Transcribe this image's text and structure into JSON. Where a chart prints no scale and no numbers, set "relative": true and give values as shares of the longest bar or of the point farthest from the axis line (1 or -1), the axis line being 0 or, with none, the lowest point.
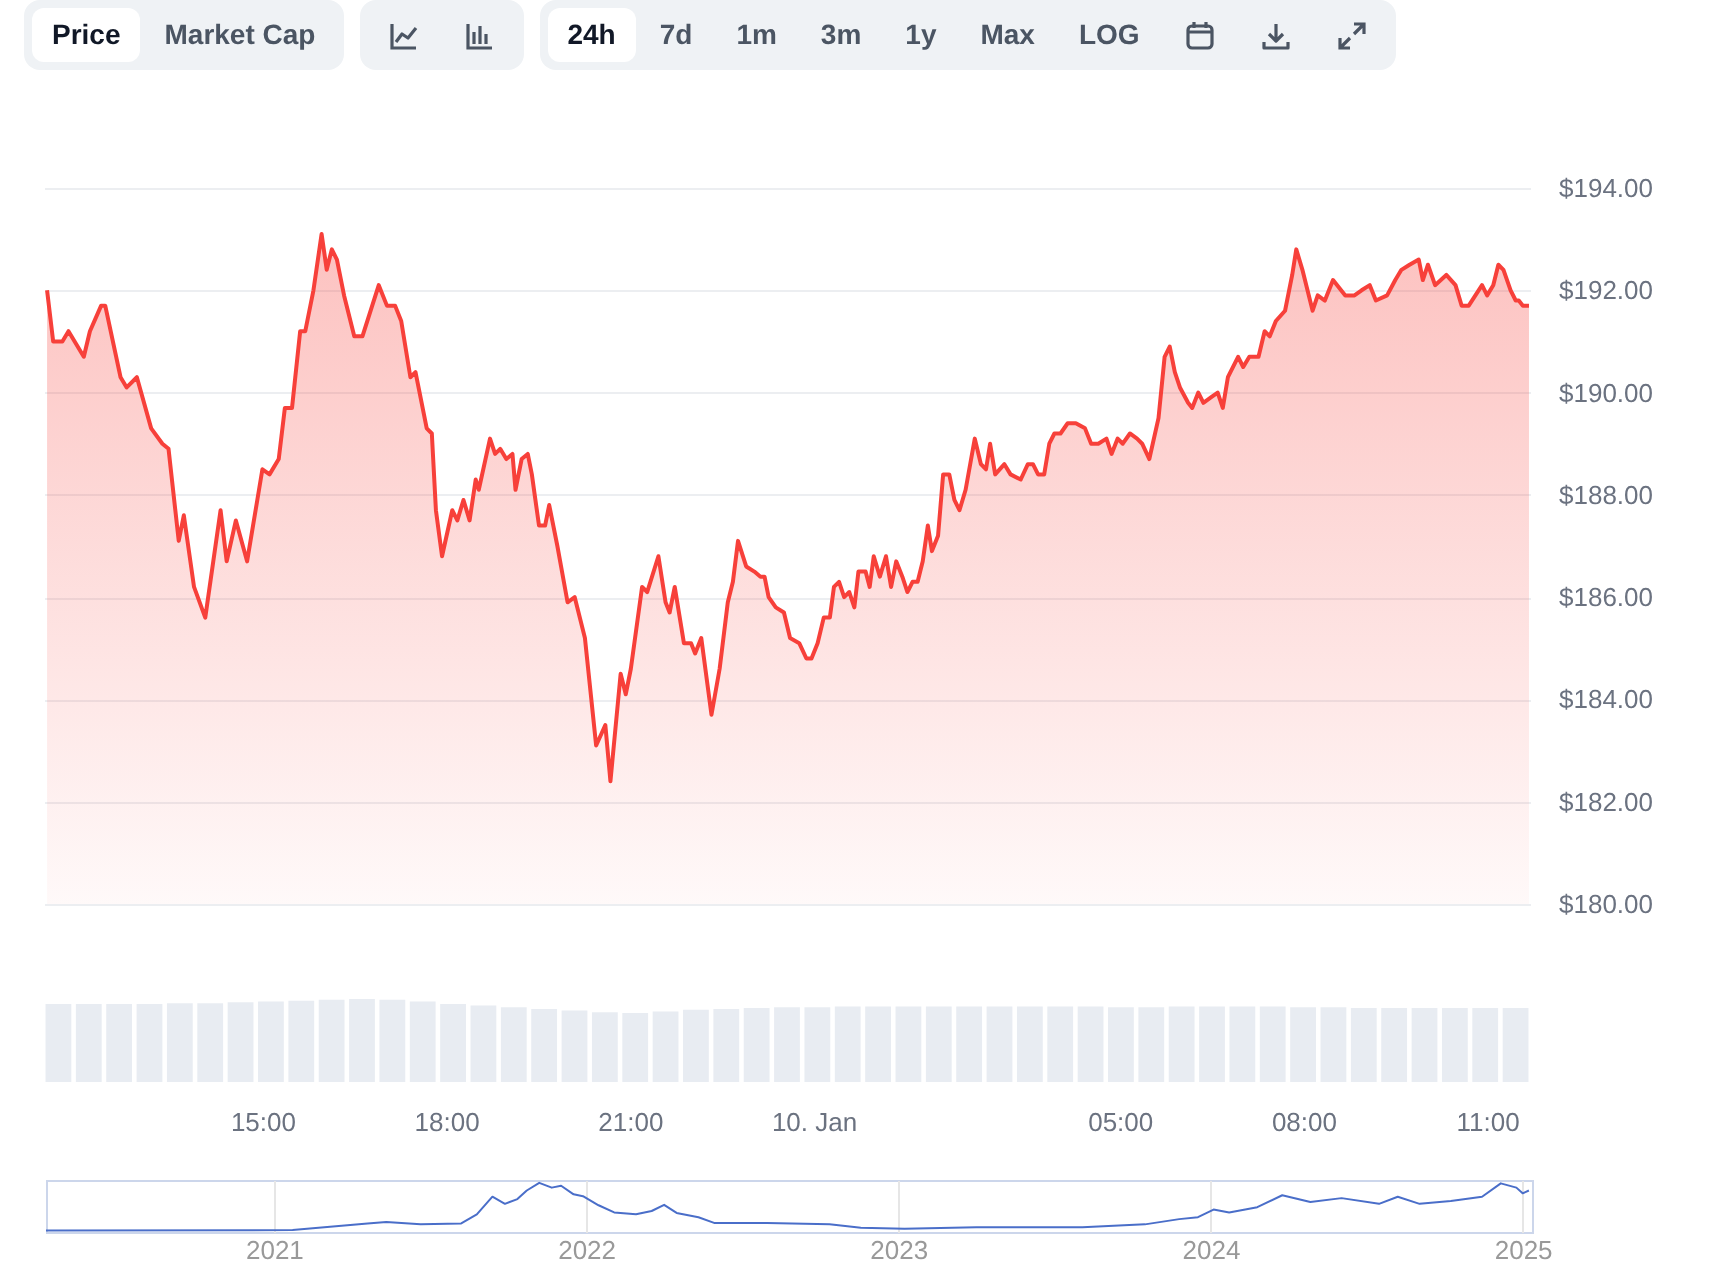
{
  "chart_data": [
    {
      "type": "other",
      "annotations": [
        "Price",
        "Market Cap",
        "24h",
        "7d",
        "1m",
        "3m",
        "1y",
        "Max",
        "LOG"
      ]
    },
    {
      "type": "area",
      "color": "#f7403a",
      "grid": "y",
      "xlim": [
        "2025-01-09T11:26",
        "2025-01-10T11:42"
      ],
      "ylim": [
        180,
        194
      ],
      "xticks": [
        {
          "value": "2025-01-09T15:00",
          "label": "15:00"
        },
        {
          "value": "2025-01-09T18:00",
          "label": "18:00"
        },
        {
          "value": "2025-01-09T21:00",
          "label": "21:00"
        },
        {
          "value": "2025-01-10T00:00",
          "label": "10. Jan"
        },
        {
          "value": "2025-01-10T05:00",
          "label": "05:00"
        },
        {
          "value": "2025-01-10T08:00",
          "label": "08:00"
        },
        {
          "value": "2025-01-10T11:00",
          "label": "11:00"
        }
      ],
      "yticks": [
        {
          "value": 180,
          "label": "$180.00"
        },
        {
          "value": 182,
          "label": "$182.00"
        },
        {
          "value": 184,
          "label": "$184.00"
        },
        {
          "value": 186,
          "label": "$186.00"
        },
        {
          "value": 188,
          "label": "$188.00"
        },
        {
          "value": 190,
          "label": "$190.00"
        },
        {
          "value": 192,
          "label": "$192.00"
        },
        {
          "value": 194,
          "label": "$194.00"
        }
      ],
      "x": [
        "2025-01-09T11:29",
        "2025-01-09T11:35",
        "2025-01-09T11:44",
        "2025-01-09T11:50",
        "2025-01-09T12:05",
        "2025-01-09T12:11",
        "2025-01-09T12:22",
        "2025-01-09T12:26",
        "2025-01-09T12:41",
        "2025-01-09T12:47",
        "2025-01-09T12:57",
        "2025-01-09T13:11",
        "2025-01-09T13:22",
        "2025-01-09T13:28",
        "2025-01-09T13:38",
        "2025-01-09T13:43",
        "2025-01-09T13:53",
        "2025-01-09T14:04",
        "2025-01-09T14:19",
        "2025-01-09T14:25",
        "2025-01-09T14:34",
        "2025-01-09T14:45",
        "2025-01-09T15:00",
        "2025-01-09T15:07",
        "2025-01-09T15:16",
        "2025-01-09T15:22",
        "2025-01-09T15:29",
        "2025-01-09T15:37",
        "2025-01-09T15:42",
        "2025-01-09T15:50",
        "2025-01-09T15:58",
        "2025-01-09T16:03",
        "2025-01-09T16:08",
        "2025-01-09T16:13",
        "2025-01-09T16:20",
        "2025-01-09T16:30",
        "2025-01-09T16:38",
        "2025-01-09T16:54",
        "2025-01-09T17:02",
        "2025-01-09T17:10",
        "2025-01-09T17:16",
        "2025-01-09T17:25",
        "2025-01-09T17:30",
        "2025-01-09T17:41",
        "2025-01-09T17:46",
        "2025-01-09T17:50",
        "2025-01-09T17:56",
        "2025-01-09T18:06",
        "2025-01-09T18:11",
        "2025-01-09T18:17",
        "2025-01-09T18:23",
        "2025-01-09T18:29",
        "2025-01-09T18:32",
        "2025-01-09T18:43",
        "2025-01-09T18:48",
        "2025-01-09T18:53",
        "2025-01-09T18:59",
        "2025-01-09T19:05",
        "2025-01-09T19:08",
        "2025-01-09T19:14",
        "2025-01-09T19:20",
        "2025-01-09T19:24",
        "2025-01-09T19:31",
        "2025-01-09T19:37",
        "2025-01-09T19:41",
        "2025-01-09T19:49",
        "2025-01-09T19:59",
        "2025-01-09T20:06",
        "2025-01-09T20:16",
        "2025-01-09T20:27",
        "2025-01-09T20:36",
        "2025-01-09T20:41",
        "2025-01-09T20:51",
        "2025-01-09T20:56",
        "2025-01-09T21:01",
        "2025-01-09T21:12",
        "2025-01-09T21:17",
        "2025-01-09T21:28",
        "2025-01-09T21:35",
        "2025-01-09T21:39",
        "2025-01-09T21:44",
        "2025-01-09T21:53",
        "2025-01-09T22:00",
        "2025-01-09T22:04",
        "2025-01-09T22:10",
        "2025-01-09T22:20",
        "2025-01-09T22:28",
        "2025-01-09T22:36",
        "2025-01-09T22:41",
        "2025-01-09T22:46",
        "2025-01-09T22:54",
        "2025-01-09T23:02",
        "2025-01-09T23:08",
        "2025-01-09T23:12",
        "2025-01-09T23:16",
        "2025-01-09T23:23",
        "2025-01-09T23:31",
        "2025-01-09T23:37",
        "2025-01-09T23:46",
        "2025-01-09T23:53",
        "2025-01-09T23:58",
        "2025-01-10T00:04",
        "2025-01-10T00:10",
        "2025-01-10T00:16",
        "2025-01-10T00:20",
        "2025-01-10T00:25",
        "2025-01-10T00:30",
        "2025-01-10T00:35",
        "2025-01-10T00:40",
        "2025-01-10T00:44",
        "2025-01-10T00:51",
        "2025-01-10T00:55",
        "2025-01-10T00:59",
        "2025-01-10T01:05",
        "2025-01-10T01:11",
        "2025-01-10T01:16",
        "2025-01-10T01:21",
        "2025-01-10T01:27",
        "2025-01-10T01:32",
        "2025-01-10T01:37",
        "2025-01-10T01:42",
        "2025-01-10T01:47",
        "2025-01-10T01:52",
        "2025-01-10T01:56",
        "2025-01-10T02:02",
        "2025-01-10T02:07",
        "2025-01-10T02:13",
        "2025-01-10T02:18",
        "2025-01-10T02:23",
        "2025-01-10T02:29",
        "2025-01-10T02:38",
        "2025-01-10T02:44",
        "2025-01-10T02:49",
        "2025-01-10T02:53",
        "2025-01-10T02:58",
        "2025-01-10T03:07",
        "2025-01-10T03:13",
        "2025-01-10T03:23",
        "2025-01-10T03:30",
        "2025-01-10T03:35",
        "2025-01-10T03:40",
        "2025-01-10T03:46",
        "2025-01-10T03:51",
        "2025-01-10T03:56",
        "2025-01-10T04:02",
        "2025-01-10T04:09",
        "2025-01-10T04:17",
        "2025-01-10T04:26",
        "2025-01-10T04:32",
        "2025-01-10T04:39",
        "2025-01-10T04:47",
        "2025-01-10T04:52",
        "2025-01-10T04:58",
        "2025-01-10T05:03",
        "2025-01-10T05:10",
        "2025-01-10T05:17",
        "2025-01-10T05:22",
        "2025-01-10T05:29",
        "2025-01-10T05:38",
        "2025-01-10T05:44",
        "2025-01-10T05:49",
        "2025-01-10T05:54",
        "2025-01-10T05:59",
        "2025-01-10T06:07",
        "2025-01-10T06:11",
        "2025-01-10T06:17",
        "2025-01-10T06:22",
        "2025-01-10T06:29",
        "2025-01-10T06:36",
        "2025-01-10T06:41",
        "2025-01-10T06:46",
        "2025-01-10T06:56",
        "2025-01-10T07:01",
        "2025-01-10T07:07",
        "2025-01-10T07:16",
        "2025-01-10T07:22",
        "2025-01-10T07:27",
        "2025-01-10T07:33",
        "2025-01-10T07:42",
        "2025-01-10T07:49",
        "2025-01-10T07:53",
        "2025-01-10T07:59",
        "2025-01-10T08:09",
        "2025-01-10T08:14",
        "2025-01-10T08:21",
        "2025-01-10T08:29",
        "2025-01-10T08:41",
        "2025-01-10T08:50",
        "2025-01-10T08:57",
        "2025-01-10T09:05",
        "2025-01-10T09:11",
        "2025-01-10T09:22",
        "2025-01-10T09:30",
        "2025-01-10T09:36",
        "2025-01-10T09:44",
        "2025-01-10T09:53",
        "2025-01-10T09:57",
        "2025-01-10T10:02",
        "2025-01-10T10:09",
        "2025-01-10T10:20",
        "2025-01-10T10:29",
        "2025-01-10T10:35",
        "2025-01-10T10:42",
        "2025-01-10T10:55",
        "2025-01-10T11:00",
        "2025-01-10T11:06",
        "2025-01-10T11:11",
        "2025-01-10T11:16",
        "2025-01-10T11:23",
        "2025-01-10T11:28",
        "2025-01-10T11:31",
        "2025-01-10T11:35",
        "2025-01-10T11:41"
      ],
      "values": [
        192.0,
        191.0,
        191.0,
        191.2,
        190.7,
        191.2,
        191.7,
        191.7,
        190.3,
        190.1,
        190.3,
        189.3,
        189.0,
        188.9,
        187.1,
        187.6,
        186.2,
        185.6,
        187.7,
        186.7,
        187.5,
        186.7,
        188.5,
        188.4,
        188.7,
        189.7,
        189.7,
        191.2,
        191.2,
        192.0,
        193.1,
        192.4,
        192.8,
        192.6,
        191.9,
        191.1,
        191.1,
        192.1,
        191.7,
        191.7,
        191.4,
        190.3,
        190.4,
        189.3,
        189.2,
        187.7,
        186.8,
        187.7,
        187.5,
        187.9,
        187.5,
        188.3,
        188.1,
        189.1,
        188.8,
        188.9,
        188.7,
        188.8,
        188.1,
        188.7,
        188.8,
        188.4,
        187.4,
        187.4,
        187.8,
        187.0,
        185.9,
        186.0,
        185.2,
        183.1,
        183.5,
        182.4,
        184.5,
        184.1,
        184.6,
        186.2,
        186.1,
        186.8,
        185.9,
        185.7,
        186.2,
        185.1,
        185.1,
        184.9,
        185.2,
        183.7,
        184.6,
        185.9,
        186.3,
        187.1,
        186.6,
        186.5,
        186.4,
        186.4,
        186.0,
        185.8,
        185.7,
        185.2,
        185.1,
        184.8,
        184.8,
        185.1,
        185.6,
        185.6,
        186.2,
        186.3,
        186.0,
        186.1,
        185.8,
        186.5,
        186.5,
        186.2,
        186.8,
        186.4,
        186.8,
        186.2,
        186.7,
        186.4,
        186.1,
        186.3,
        186.3,
        186.7,
        187.4,
        186.9,
        187.2,
        188.4,
        188.4,
        187.9,
        187.7,
        188.1,
        189.1,
        188.6,
        188.5,
        189.0,
        188.4,
        188.6,
        188.4,
        188.3,
        188.6,
        188.6,
        188.4,
        188.4,
        189.0,
        189.2,
        189.2,
        189.4,
        189.4,
        189.3,
        189.0,
        189.0,
        189.1,
        188.8,
        189.1,
        189.0,
        189.2,
        189.1,
        189.0,
        188.7,
        189.5,
        190.7,
        190.9,
        190.4,
        190.1,
        189.8,
        189.7,
        190.0,
        189.8,
        189.9,
        190.0,
        189.7,
        190.3,
        190.7,
        190.5,
        190.7,
        190.7,
        191.2,
        191.1,
        191.4,
        191.6,
        192.3,
        192.8,
        192.4,
        191.6,
        191.9,
        191.8,
        192.2,
        191.9,
        191.9,
        192.0,
        192.1,
        191.8,
        191.9,
        192.2,
        192.4,
        192.5,
        192.6,
        192.2,
        192.5,
        192.1,
        192.3,
        192.1,
        191.7,
        191.7,
        192.1,
        191.9,
        192.1,
        192.5,
        192.4,
        192.0,
        191.8,
        191.8,
        191.7,
        191.7
      ]
    },
    {
      "type": "bar",
      "color": "#e8ecf2",
      "relative": true,
      "categories": [
        null,
        null,
        null,
        null,
        null,
        null,
        null,
        null,
        null,
        null,
        null,
        null,
        null,
        null,
        null,
        null,
        null,
        null,
        null,
        null,
        null,
        null,
        null,
        null,
        null,
        null,
        null,
        null,
        null,
        null,
        null,
        null,
        null,
        null,
        null,
        null,
        null,
        null,
        null,
        null,
        null,
        null,
        null,
        null,
        null,
        null,
        null,
        null,
        null
      ],
      "values": [
        0.94,
        0.94,
        0.94,
        0.94,
        0.95,
        0.95,
        0.96,
        0.97,
        0.98,
        0.99,
        1.0,
        0.99,
        0.97,
        0.94,
        0.92,
        0.9,
        0.88,
        0.86,
        0.84,
        0.83,
        0.85,
        0.87,
        0.88,
        0.89,
        0.9,
        0.9,
        0.91,
        0.91,
        0.91,
        0.91,
        0.91,
        0.91,
        0.91,
        0.91,
        0.91,
        0.9,
        0.9,
        0.91,
        0.91,
        0.91,
        0.91,
        0.9,
        0.9,
        0.89,
        0.89,
        0.89,
        0.89,
        0.89,
        0.89
      ]
    },
    {
      "type": "line",
      "color": "#4a6ec9",
      "relative": true,
      "grid": "x",
      "tick_labels": "x",
      "xlim": [
        2020.27,
        2025.03
      ],
      "xticks": [
        2021,
        2022,
        2023,
        2024,
        2025
      ],
      "x": [
        2020.27,
        2021.06,
        2021.3,
        2021.36,
        2021.47,
        2021.6,
        2021.65,
        2021.7,
        2021.74,
        2021.78,
        2021.81,
        2021.85,
        2021.89,
        2021.92,
        2021.96,
        2021.99,
        2022.04,
        2022.09,
        2022.16,
        2022.21,
        2022.25,
        2022.29,
        2022.36,
        2022.41,
        2022.58,
        2022.78,
        2022.88,
        2023.02,
        2023.25,
        2023.59,
        2023.79,
        2023.9,
        2023.96,
        2024.01,
        2024.06,
        2024.15,
        2024.23,
        2024.32,
        2024.42,
        2024.54,
        2024.6,
        2024.67,
        2024.77,
        2024.87,
        2024.93,
        2024.98,
        2025.0,
        2025.02
      ],
      "values": [
        0,
        0.01,
        0.15,
        0.18,
        0.13,
        0.15,
        0.34,
        0.71,
        0.56,
        0.66,
        0.84,
        1.0,
        0.9,
        0.94,
        0.76,
        0.72,
        0.53,
        0.38,
        0.34,
        0.41,
        0.54,
        0.37,
        0.28,
        0.16,
        0.16,
        0.13,
        0.06,
        0.04,
        0.07,
        0.07,
        0.13,
        0.24,
        0.28,
        0.44,
        0.38,
        0.49,
        0.74,
        0.6,
        0.68,
        0.56,
        0.71,
        0.56,
        0.62,
        0.71,
        0.99,
        0.9,
        0.78,
        0.84
      ]
    }
  ]
}
